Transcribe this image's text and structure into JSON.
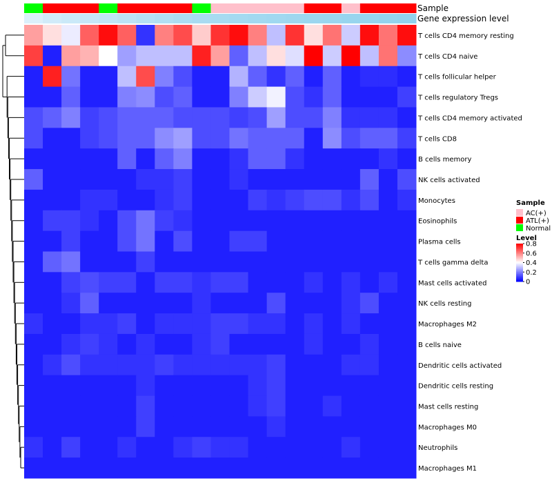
{
  "chart_data": {
    "type": "heatmap",
    "title": "",
    "annotation_labels": [
      "Sample",
      "Gene expression level"
    ],
    "sample_groups": [
      "Normal",
      "ATL(+)",
      "ATL(+)",
      "ATL(+)",
      "Normal",
      "ATL(+)",
      "ATL(+)",
      "ATL(+)",
      "ATL(+)",
      "Normal",
      "AC(+)",
      "AC(+)",
      "AC(+)",
      "AC(+)",
      "AC(+)",
      "ATL(+)",
      "ATL(+)",
      "AC(+)",
      "ATL(+)",
      "ATL(+)",
      "ATL(+)"
    ],
    "expression_level": [
      0.2,
      0.3,
      0.35,
      0.4,
      0.45,
      0.5,
      0.55,
      0.6,
      0.65,
      0.68,
      0.7,
      0.72,
      0.74,
      0.76,
      0.78,
      0.8,
      0.82,
      0.84,
      0.86,
      0.88,
      0.9
    ],
    "rows": [
      "T cells CD4 memory resting",
      "T cells CD4 naive",
      "T cells follicular helper",
      "T cells regulatory  Tregs",
      "T cells CD4 memory activated",
      "T cells CD8",
      "B cells memory",
      "NK cells activated",
      "Monocytes",
      "Eosinophils",
      "Plasma cells",
      "T cells gamma delta",
      "Mast cells activated",
      "NK cells resting",
      "Macrophages M2",
      "B cells naive",
      "Dendritic cells activated",
      "Dendritic cells resting",
      "Mast cells resting",
      "Macrophages M0",
      "Neutrophils",
      "Macrophages M1"
    ],
    "values": [
      [
        0.55,
        0.45,
        0.37,
        0.65,
        0.78,
        0.65,
        0.08,
        0.6,
        0.68,
        0.48,
        0.72,
        0.78,
        0.6,
        0.3,
        0.72,
        0.45,
        0.62,
        0.32,
        0.78,
        0.62,
        0.78
      ],
      [
        0.7,
        0.05,
        0.55,
        0.52,
        0.4,
        0.25,
        0.3,
        0.3,
        0.3,
        0.75,
        0.55,
        0.15,
        0.3,
        0.45,
        0.35,
        0.8,
        0.32,
        0.8,
        0.3,
        0.62,
        0.22
      ],
      [
        0.05,
        0.75,
        0.18,
        0.05,
        0.05,
        0.3,
        0.68,
        0.2,
        0.12,
        0.05,
        0.05,
        0.28,
        0.15,
        0.08,
        0.15,
        0.05,
        0.15,
        0.05,
        0.07,
        0.07,
        0.05
      ],
      [
        0.05,
        0.05,
        0.15,
        0.05,
        0.05,
        0.2,
        0.22,
        0.12,
        0.15,
        0.05,
        0.05,
        0.2,
        0.32,
        0.38,
        0.12,
        0.08,
        0.15,
        0.05,
        0.05,
        0.05,
        0.1
      ],
      [
        0.12,
        0.15,
        0.2,
        0.1,
        0.12,
        0.15,
        0.15,
        0.15,
        0.12,
        0.12,
        0.12,
        0.1,
        0.12,
        0.25,
        0.12,
        0.12,
        0.2,
        0.08,
        0.08,
        0.08,
        0.05
      ],
      [
        0.12,
        0.05,
        0.05,
        0.1,
        0.12,
        0.15,
        0.15,
        0.22,
        0.25,
        0.12,
        0.12,
        0.18,
        0.15,
        0.15,
        0.15,
        0.05,
        0.22,
        0.12,
        0.15,
        0.15,
        0.1
      ],
      [
        0.05,
        0.05,
        0.05,
        0.05,
        0.05,
        0.15,
        0.05,
        0.15,
        0.2,
        0.05,
        0.05,
        0.08,
        0.15,
        0.15,
        0.08,
        0.05,
        0.05,
        0.05,
        0.05,
        0.08,
        0.05
      ],
      [
        0.15,
        0.05,
        0.05,
        0.05,
        0.05,
        0.05,
        0.08,
        0.08,
        0.1,
        0.05,
        0.05,
        0.08,
        0.05,
        0.05,
        0.05,
        0.05,
        0.05,
        0.05,
        0.15,
        0.05,
        0.12
      ],
      [
        0.05,
        0.05,
        0.05,
        0.08,
        0.08,
        0.05,
        0.05,
        0.08,
        0.1,
        0.05,
        0.05,
        0.05,
        0.1,
        0.08,
        0.1,
        0.12,
        0.12,
        0.08,
        0.12,
        0.05,
        0.08
      ],
      [
        0.05,
        0.1,
        0.1,
        0.08,
        0.05,
        0.12,
        0.18,
        0.1,
        0.08,
        0.05,
        0.05,
        0.05,
        0.05,
        0.05,
        0.05,
        0.05,
        0.05,
        0.05,
        0.05,
        0.05,
        0.05
      ],
      [
        0.05,
        0.05,
        0.1,
        0.05,
        0.05,
        0.12,
        0.18,
        0.05,
        0.12,
        0.05,
        0.05,
        0.1,
        0.1,
        0.05,
        0.05,
        0.05,
        0.05,
        0.05,
        0.05,
        0.05,
        0.05
      ],
      [
        0.05,
        0.15,
        0.18,
        0.05,
        0.05,
        0.05,
        0.1,
        0.05,
        0.05,
        0.05,
        0.05,
        0.05,
        0.05,
        0.05,
        0.05,
        0.05,
        0.05,
        0.05,
        0.05,
        0.05,
        0.05
      ],
      [
        0.05,
        0.05,
        0.1,
        0.12,
        0.1,
        0.1,
        0.05,
        0.1,
        0.1,
        0.08,
        0.1,
        0.1,
        0.05,
        0.05,
        0.05,
        0.08,
        0.05,
        0.08,
        0.05,
        0.08,
        0.05
      ],
      [
        0.05,
        0.05,
        0.08,
        0.15,
        0.05,
        0.05,
        0.05,
        0.05,
        0.05,
        0.08,
        0.05,
        0.05,
        0.05,
        0.12,
        0.05,
        0.05,
        0.05,
        0.08,
        0.12,
        0.05,
        0.05
      ],
      [
        0.08,
        0.05,
        0.05,
        0.08,
        0.08,
        0.1,
        0.05,
        0.08,
        0.08,
        0.08,
        0.1,
        0.1,
        0.08,
        0.08,
        0.05,
        0.08,
        0.05,
        0.08,
        0.05,
        0.05,
        0.05
      ],
      [
        0.05,
        0.05,
        0.08,
        0.1,
        0.08,
        0.05,
        0.08,
        0.05,
        0.05,
        0.08,
        0.1,
        0.05,
        0.05,
        0.05,
        0.05,
        0.08,
        0.05,
        0.05,
        0.08,
        0.05,
        0.05
      ],
      [
        0.05,
        0.08,
        0.12,
        0.08,
        0.08,
        0.08,
        0.08,
        0.1,
        0.08,
        0.08,
        0.08,
        0.08,
        0.08,
        0.1,
        0.05,
        0.05,
        0.05,
        0.08,
        0.08,
        0.05,
        0.05
      ],
      [
        0.05,
        0.05,
        0.05,
        0.05,
        0.05,
        0.05,
        0.08,
        0.05,
        0.05,
        0.05,
        0.05,
        0.05,
        0.08,
        0.1,
        0.05,
        0.05,
        0.05,
        0.05,
        0.05,
        0.05,
        0.05
      ],
      [
        0.05,
        0.05,
        0.05,
        0.05,
        0.05,
        0.05,
        0.1,
        0.05,
        0.05,
        0.05,
        0.05,
        0.05,
        0.08,
        0.1,
        0.05,
        0.05,
        0.08,
        0.05,
        0.05,
        0.05,
        0.05
      ],
      [
        0.05,
        0.05,
        0.05,
        0.05,
        0.05,
        0.05,
        0.1,
        0.05,
        0.05,
        0.05,
        0.05,
        0.05,
        0.05,
        0.08,
        0.05,
        0.05,
        0.05,
        0.05,
        0.05,
        0.05,
        0.05
      ],
      [
        0.08,
        0.05,
        0.1,
        0.05,
        0.05,
        0.08,
        0.05,
        0.05,
        0.08,
        0.1,
        0.08,
        0.08,
        0.05,
        0.05,
        0.05,
        0.05,
        0.05,
        0.08,
        0.05,
        0.05,
        0.05
      ],
      [
        0.05,
        0.05,
        0.05,
        0.05,
        0.05,
        0.05,
        0.05,
        0.05,
        0.05,
        0.05,
        0.05,
        0.05,
        0.05,
        0.05,
        0.05,
        0.05,
        0.05,
        0.05,
        0.05,
        0.05,
        0.05
      ]
    ],
    "color_scale": {
      "min": 0,
      "max": 0.8,
      "low": "#0000ff",
      "mid": "#ffffff",
      "high": "#ff0000",
      "mid_value": 0.4
    },
    "legend": {
      "sample": {
        "title": "Sample",
        "entries": [
          {
            "label": "AC(+)",
            "color": "#ffc0cb"
          },
          {
            "label": "ATL(+)",
            "color": "#ff0000"
          },
          {
            "label": "Normal",
            "color": "#00ff00"
          }
        ]
      },
      "level": {
        "title": "Level",
        "ticks": [
          0.8,
          0.6,
          0.4,
          0.2,
          0
        ],
        "tick_labels": [
          "0.8",
          "0.6",
          "0.4",
          "0.2",
          "0"
        ]
      },
      "placement": "right"
    },
    "dendrogram": "rows"
  }
}
